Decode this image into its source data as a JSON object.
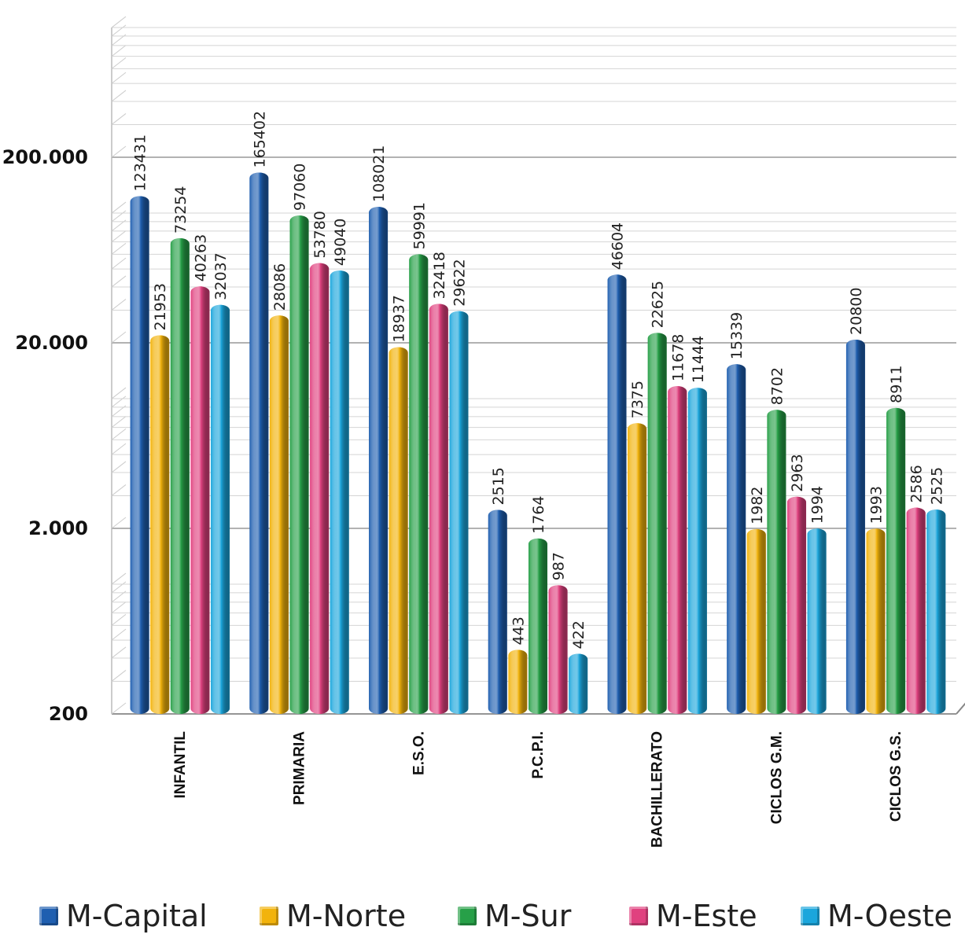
{
  "chart_data": {
    "type": "bar",
    "yscale": "log",
    "ylim": [
      200,
      1000000
    ],
    "yticks": [
      {
        "value": 200,
        "label": "200"
      },
      {
        "value": 2000,
        "label": "2.000"
      },
      {
        "value": 20000,
        "label": "20.000"
      },
      {
        "value": 200000,
        "label": "200.000"
      }
    ],
    "categories": [
      "INFANTIL",
      "PRIMARIA",
      "E.S.O.",
      "P.C.P.I.",
      "BACHILLERATO",
      "CICLOS G.M.",
      "CICLOS G.S."
    ],
    "series": [
      {
        "name": "M-Capital",
        "color": "#1f5fb0",
        "values": [
          123431,
          165402,
          108021,
          2515,
          46604,
          15339,
          20800
        ],
        "labels": [
          "123431",
          "165402",
          "108021",
          "2515",
          "46604",
          "15339",
          "20800"
        ]
      },
      {
        "name": "M-Norte",
        "color": "#f2b30c",
        "values": [
          21953,
          28086,
          18937,
          443,
          7375,
          1982,
          1993
        ],
        "labels": [
          "21953",
          "28086",
          "18937",
          "443",
          "7375",
          "1982",
          "1993"
        ]
      },
      {
        "name": "M-Sur",
        "color": "#27a048",
        "values": [
          73254,
          97060,
          59991,
          1764,
          22625,
          8702,
          8911
        ],
        "labels": [
          "73254",
          "97060",
          "59991",
          "1764",
          "22625",
          "8702",
          "8911"
        ]
      },
      {
        "name": "M-Este",
        "color": "#e0417f",
        "values": [
          40263,
          53780,
          32418,
          987,
          11678,
          2963,
          2586
        ],
        "labels": [
          "40263",
          "53780",
          "32418",
          "987",
          "11678",
          "2963",
          "2586"
        ]
      },
      {
        "name": "M-Oeste",
        "color": "#1ba6dc",
        "values": [
          32037,
          49040,
          29622,
          422,
          11444,
          1994,
          2525
        ],
        "labels": [
          "32037",
          "49040",
          "29622",
          "422",
          "11444",
          "1994",
          "2525"
        ]
      }
    ],
    "legend_position": "bottom",
    "grid": true
  }
}
